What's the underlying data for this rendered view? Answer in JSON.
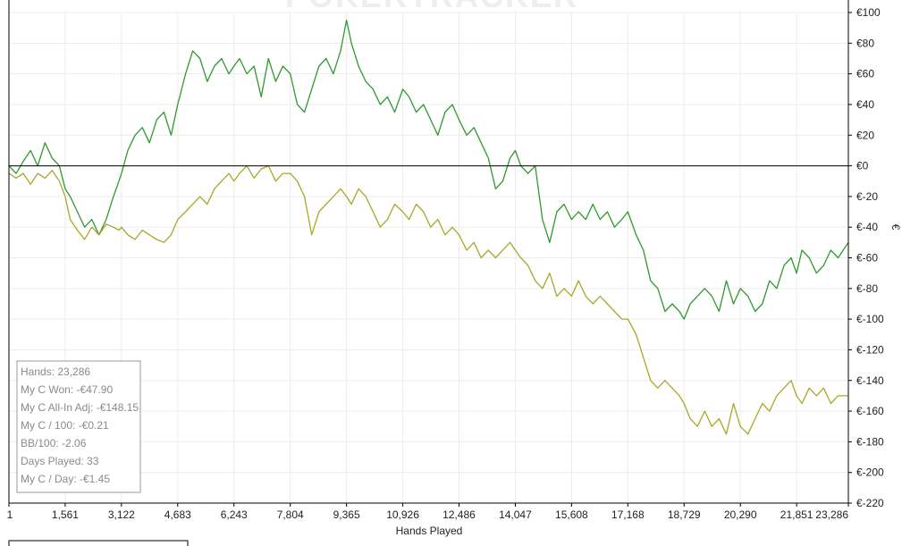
{
  "watermark": "POKERTRACKER",
  "chart_data": {
    "type": "line",
    "xlabel": "Hands Played",
    "ylabel": "€",
    "xlim": [
      1,
      23286
    ],
    "ylim": [
      -220,
      100
    ],
    "x_ticks": [
      1,
      1561,
      3122,
      4683,
      6243,
      7804,
      9365,
      10926,
      12486,
      14047,
      15608,
      17168,
      18729,
      20290,
      21851,
      23286
    ],
    "x_tick_labels": [
      "1",
      "1,561",
      "3,122",
      "4,683",
      "6,243",
      "7,804",
      "9,365",
      "10,926",
      "12,486",
      "14,047",
      "15,608",
      "17,168",
      "18,729",
      "20,290",
      "21,851",
      "23,286"
    ],
    "y_ticks": [
      100,
      80,
      60,
      40,
      20,
      0,
      -20,
      -40,
      -60,
      -80,
      -100,
      -120,
      -140,
      -160,
      -180,
      -200,
      -220
    ],
    "y_tick_labels": [
      "€100",
      "€80",
      "€60",
      "€40",
      "€20",
      "€0",
      "€-20",
      "€-40",
      "€-60",
      "€-80",
      "€-100",
      "€-120",
      "€-140",
      "€-160",
      "€-180",
      "€-200",
      "€-220"
    ],
    "grid": true,
    "zero_line": true,
    "colors": {
      "won": "#2e9a2e",
      "allin": "#a8a828",
      "grid": "#ececec",
      "axis": "#000000"
    },
    "series": [
      {
        "key": "won",
        "x": [
          1,
          200,
          400,
          600,
          800,
          1000,
          1200,
          1400,
          1561,
          1700,
          1900,
          2100,
          2300,
          2500,
          2700,
          2900,
          3050,
          3122,
          3300,
          3500,
          3700,
          3900,
          4100,
          4300,
          4500,
          4683,
          4900,
          5100,
          5300,
          5500,
          5700,
          5900,
          6100,
          6243,
          6400,
          6600,
          6800,
          7000,
          7200,
          7400,
          7600,
          7804,
          8000,
          8200,
          8400,
          8600,
          8800,
          9000,
          9200,
          9365,
          9500,
          9700,
          9900,
          10100,
          10300,
          10500,
          10700,
          10926,
          11100,
          11300,
          11500,
          11700,
          11900,
          12100,
          12300,
          12486,
          12700,
          12900,
          13100,
          13300,
          13500,
          13700,
          13900,
          14047,
          14200,
          14400,
          14600,
          14800,
          15000,
          15200,
          15400,
          15608,
          15800,
          16000,
          16200,
          16400,
          16600,
          16800,
          17000,
          17168,
          17400,
          17600,
          17800,
          18000,
          18200,
          18400,
          18600,
          18729,
          18900,
          19100,
          19300,
          19500,
          19700,
          19900,
          20100,
          20290,
          20500,
          20700,
          20900,
          21100,
          21300,
          21500,
          21700,
          21851,
          22000,
          22200,
          22400,
          22600,
          22800,
          23000,
          23286
        ],
        "y": [
          0,
          -5,
          3,
          10,
          0,
          15,
          5,
          0,
          -15,
          -20,
          -30,
          -40,
          -35,
          -45,
          -35,
          -20,
          -10,
          -5,
          10,
          20,
          25,
          15,
          30,
          35,
          20,
          40,
          60,
          75,
          70,
          55,
          65,
          70,
          60,
          65,
          70,
          60,
          65,
          45,
          70,
          55,
          65,
          60,
          40,
          35,
          50,
          65,
          70,
          60,
          75,
          95,
          80,
          65,
          55,
          50,
          40,
          45,
          35,
          50,
          45,
          35,
          40,
          30,
          20,
          35,
          40,
          30,
          20,
          25,
          15,
          5,
          -15,
          -10,
          5,
          10,
          0,
          -5,
          0,
          -35,
          -50,
          -30,
          -25,
          -35,
          -30,
          -35,
          -25,
          -35,
          -30,
          -40,
          -35,
          -30,
          -45,
          -55,
          -75,
          -80,
          -95,
          -90,
          -95,
          -100,
          -90,
          -85,
          -80,
          -85,
          -95,
          -75,
          -90,
          -80,
          -85,
          -95,
          -90,
          -75,
          -80,
          -65,
          -60,
          -70,
          -55,
          -60,
          -70,
          -65,
          -55,
          -60,
          -50
        ]
      },
      {
        "key": "allin",
        "x": [
          1,
          200,
          400,
          600,
          800,
          1000,
          1200,
          1400,
          1561,
          1700,
          1900,
          2100,
          2300,
          2500,
          2700,
          2900,
          3050,
          3122,
          3300,
          3500,
          3700,
          3900,
          4100,
          4300,
          4500,
          4683,
          4900,
          5100,
          5300,
          5500,
          5700,
          5900,
          6100,
          6243,
          6400,
          6600,
          6800,
          7000,
          7200,
          7400,
          7600,
          7804,
          8000,
          8200,
          8400,
          8600,
          8800,
          9000,
          9200,
          9365,
          9500,
          9700,
          9900,
          10100,
          10300,
          10500,
          10700,
          10926,
          11100,
          11300,
          11500,
          11700,
          11900,
          12100,
          12300,
          12486,
          12700,
          12900,
          13100,
          13300,
          13500,
          13700,
          13900,
          14047,
          14200,
          14400,
          14600,
          14800,
          15000,
          15200,
          15400,
          15608,
          15800,
          16000,
          16200,
          16400,
          16600,
          16800,
          17000,
          17168,
          17400,
          17600,
          17800,
          18000,
          18200,
          18400,
          18600,
          18729,
          18900,
          19100,
          19300,
          19500,
          19700,
          19900,
          20100,
          20290,
          20500,
          20700,
          20900,
          21100,
          21300,
          21500,
          21700,
          21851,
          22000,
          22200,
          22400,
          22600,
          22800,
          23000,
          23286
        ],
        "y": [
          -5,
          -8,
          -5,
          -12,
          -5,
          -8,
          -3,
          -10,
          -20,
          -35,
          -42,
          -48,
          -40,
          -45,
          -38,
          -40,
          -42,
          -40,
          -45,
          -48,
          -42,
          -45,
          -48,
          -50,
          -45,
          -35,
          -30,
          -25,
          -20,
          -25,
          -15,
          -10,
          -5,
          -10,
          -5,
          0,
          -8,
          -2,
          0,
          -10,
          -5,
          -5,
          -10,
          -20,
          -45,
          -30,
          -25,
          -20,
          -15,
          -20,
          -25,
          -15,
          -20,
          -30,
          -40,
          -35,
          -25,
          -30,
          -35,
          -25,
          -30,
          -40,
          -35,
          -45,
          -40,
          -45,
          -55,
          -50,
          -60,
          -55,
          -60,
          -55,
          -50,
          -55,
          -60,
          -65,
          -75,
          -80,
          -70,
          -85,
          -80,
          -85,
          -75,
          -85,
          -90,
          -85,
          -90,
          -95,
          -100,
          -100,
          -110,
          -125,
          -140,
          -145,
          -140,
          -145,
          -150,
          -155,
          -165,
          -170,
          -160,
          -170,
          -165,
          -175,
          -155,
          -170,
          -175,
          -165,
          -155,
          -160,
          -150,
          -145,
          -140,
          -150,
          -155,
          -145,
          -150,
          -145,
          -155,
          -150,
          -150
        ]
      }
    ]
  },
  "stats_box": {
    "lines": [
      "Hands: 23,286",
      "My C Won: -€47.90",
      "My C All-In Adj: -€148.15",
      "My C / 100: -€0.21",
      "BB/100: -2.06",
      "Days Played: 33",
      "My C / Day: -€1.45"
    ]
  }
}
